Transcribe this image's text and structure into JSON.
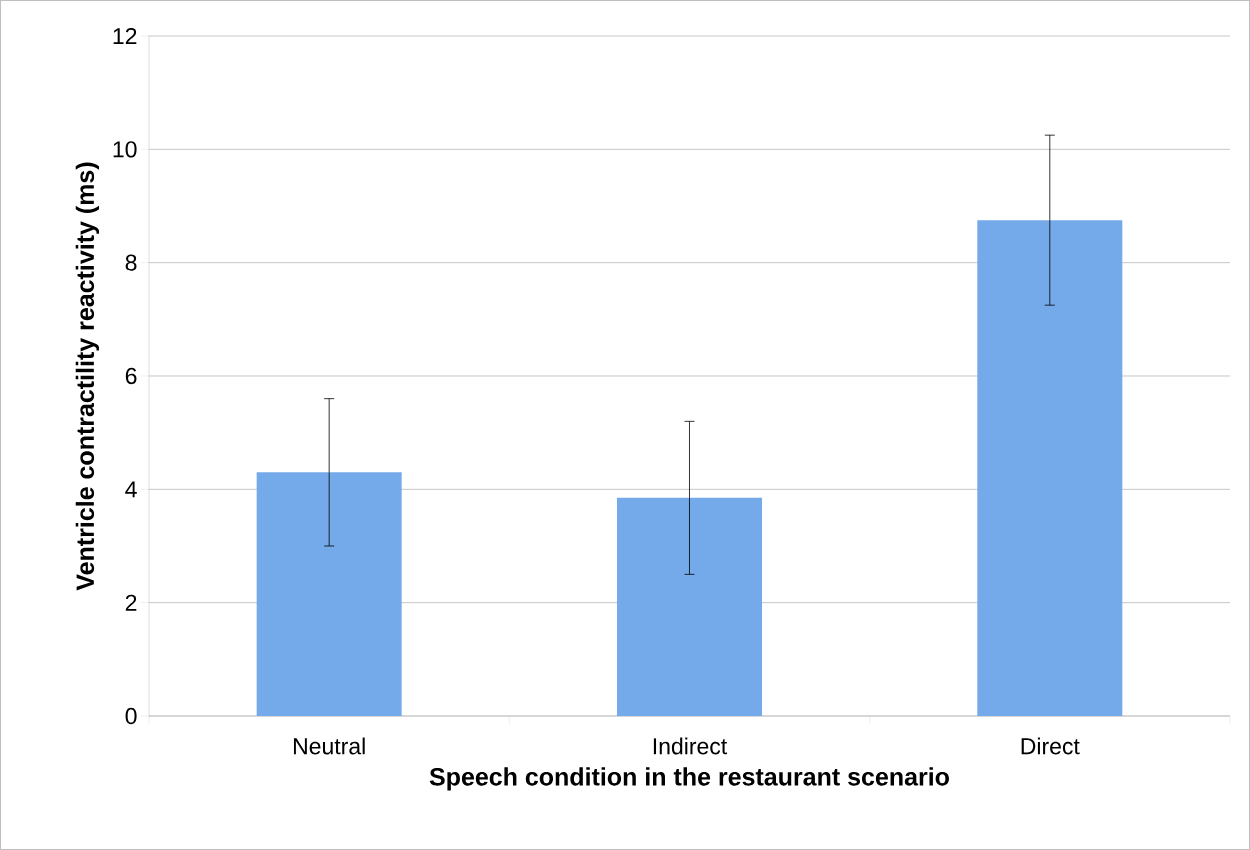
{
  "chart_data": {
    "type": "bar",
    "xlabel": "Speech condition in the restaurant scenario",
    "ylabel": "Ventricle contractility reactivity (ms)",
    "categories": [
      "Neutral",
      "Indirect",
      "Direct"
    ],
    "values": [
      4.3,
      3.85,
      8.75
    ],
    "errors": [
      1.3,
      1.35,
      1.5
    ],
    "color": "#74a9ea",
    "ylim": [
      0,
      12
    ],
    "yticks": [
      0,
      2,
      4,
      6,
      8,
      10,
      12
    ],
    "grid": "y"
  }
}
